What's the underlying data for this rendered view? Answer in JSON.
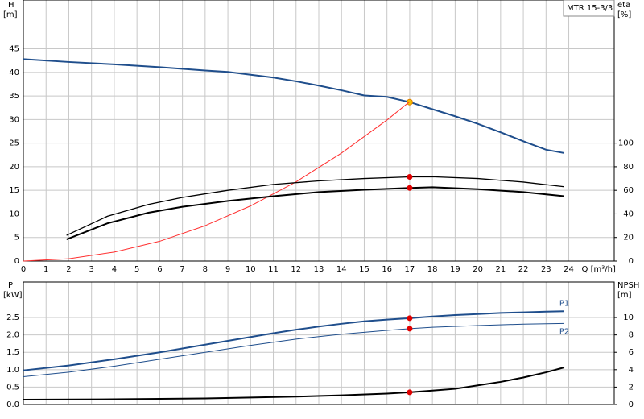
{
  "chart_data": [
    {
      "type": "line",
      "title": "MTR 15-3/3",
      "ylabel": "H",
      "yunit": "[m]",
      "y2label": "eta",
      "y2unit": "[%]",
      "xlabel": "Q [m³/h]",
      "xlim": [
        0,
        26
      ],
      "xticks": [
        0,
        1,
        2,
        3,
        4,
        5,
        6,
        7,
        8,
        9,
        10,
        11,
        12,
        13,
        14,
        15,
        16,
        17,
        18,
        19,
        20,
        21,
        22,
        23,
        24
      ],
      "ylim": [
        0,
        55
      ],
      "yticks": [
        0,
        5,
        10,
        15,
        20,
        25,
        30,
        35,
        40,
        45
      ],
      "y2lim": [
        0,
        220
      ],
      "y2ticks": [
        0,
        20,
        40,
        60,
        80,
        100
      ],
      "grid": true,
      "duty_q": 17,
      "series": [
        {
          "color": "#1f4e8c",
          "width": 2,
          "marker_color": "#f5c000",
          "x": [
            0,
            2,
            4,
            6,
            8,
            9,
            10,
            11,
            12,
            13,
            14,
            15,
            16,
            17,
            18,
            19,
            20,
            21,
            22,
            23,
            23.8
          ],
          "values": [
            42.8,
            42.2,
            41.7,
            41.1,
            40.4,
            40.1,
            39.5,
            38.9,
            38.1,
            37.2,
            36.2,
            35.1,
            34.8,
            33.7,
            32.2,
            30.7,
            29.1,
            27.3,
            25.4,
            23.6,
            22.9
          ]
        },
        {
          "color": "#ff3030",
          "width": 1,
          "x": [
            0,
            2,
            4,
            6,
            8,
            10,
            12,
            14,
            16,
            17
          ],
          "values": [
            0,
            0.5,
            1.9,
            4.2,
            7.5,
            11.7,
            16.8,
            22.9,
            29.9,
            33.8
          ]
        },
        {
          "color": "#000000",
          "width": 1.3,
          "axis": "y2",
          "marker_color": "#e00000",
          "x": [
            1.9,
            3.7,
            5.5,
            7,
            9,
            11,
            13,
            15,
            17,
            18,
            20,
            22,
            23.8
          ],
          "values": [
            21.8,
            38,
            48,
            54,
            60,
            65,
            68,
            70,
            71.4,
            71.5,
            70,
            67,
            63
          ]
        },
        {
          "color": "#000000",
          "width": 2,
          "axis": "y2",
          "marker_color": "#e00000",
          "x": [
            1.9,
            3.7,
            5.5,
            7,
            9,
            11,
            13,
            15,
            17,
            18,
            20,
            22,
            23.8
          ],
          "values": [
            18.4,
            32,
            41,
            46,
            51,
            55,
            58.5,
            60.5,
            62,
            62.6,
            61,
            58.5,
            55
          ]
        }
      ]
    },
    {
      "type": "line",
      "ylabel": "P",
      "yunit": "[kW]",
      "y2label": "NPSH",
      "y2unit": "[m]",
      "xlim": [
        0,
        26
      ],
      "xticks": [
        0,
        1,
        2,
        3,
        4,
        5,
        6,
        7,
        8,
        9,
        10,
        11,
        12,
        13,
        14,
        15,
        16,
        17,
        18,
        19,
        20,
        21,
        22,
        23,
        24
      ],
      "xtick_labels": false,
      "ylim": [
        0,
        3.52
      ],
      "yticks": [
        {
          "value": 0,
          "label": "0.0"
        },
        {
          "value": 0.5,
          "label": "0.5"
        },
        {
          "value": 1,
          "label": "1.0"
        },
        {
          "value": 1.5,
          "label": "1.5"
        },
        {
          "value": 2,
          "label": "2.0"
        },
        {
          "value": 2.5,
          "label": "2.5"
        }
      ],
      "y2lim": [
        0,
        14.08
      ],
      "y2ticks": [
        0,
        2,
        4,
        6,
        8,
        10
      ],
      "grid": true,
      "duty_q": 17,
      "series": [
        {
          "name": "P1",
          "color": "#1f4e8c",
          "width": 2,
          "marker_color": "#e00000",
          "x": [
            0,
            2,
            4,
            6,
            8,
            9,
            10,
            11,
            12,
            13,
            14,
            15,
            16,
            17,
            18,
            19,
            20,
            21,
            22,
            23,
            23.8
          ],
          "values": [
            0.98,
            1.12,
            1.3,
            1.5,
            1.72,
            1.83,
            1.94,
            2.05,
            2.15,
            2.24,
            2.32,
            2.39,
            2.44,
            2.48,
            2.53,
            2.57,
            2.6,
            2.63,
            2.65,
            2.67,
            2.68
          ]
        },
        {
          "name": "P2",
          "color": "#1f4e8c",
          "width": 1,
          "marker_color": "#e00000",
          "x": [
            0,
            2,
            4,
            6,
            8,
            10,
            12,
            14,
            16,
            17,
            18,
            20,
            22,
            23.8
          ],
          "values": [
            0.8,
            0.93,
            1.1,
            1.3,
            1.5,
            1.7,
            1.88,
            2.02,
            2.13,
            2.18,
            2.22,
            2.27,
            2.31,
            2.33
          ]
        },
        {
          "color": "#000000",
          "width": 2,
          "axis": "y2",
          "marker_color": "#e00000",
          "x": [
            0,
            4,
            8,
            10,
            12,
            14,
            16,
            17,
            18,
            19,
            20,
            21,
            22,
            23,
            23.8
          ],
          "values": [
            0.56,
            0.6,
            0.7,
            0.8,
            0.9,
            1.05,
            1.25,
            1.4,
            1.6,
            1.8,
            2.2,
            2.6,
            3.1,
            3.7,
            4.26
          ]
        }
      ]
    }
  ]
}
